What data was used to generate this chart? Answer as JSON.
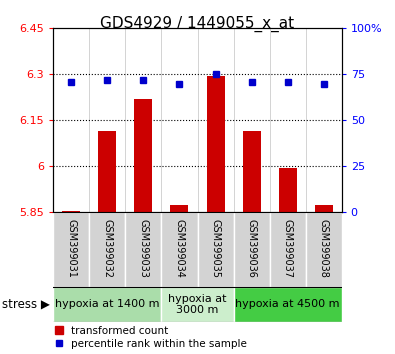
{
  "title": "GDS4929 / 1449055_x_at",
  "samples": [
    "GSM399031",
    "GSM399032",
    "GSM399033",
    "GSM399034",
    "GSM399035",
    "GSM399036",
    "GSM399037",
    "GSM399038"
  ],
  "bar_values": [
    5.855,
    6.115,
    6.22,
    5.875,
    6.295,
    6.115,
    5.995,
    5.875
  ],
  "percentile_values": [
    71,
    72,
    72,
    70,
    75,
    71,
    71,
    70
  ],
  "ylim_left": [
    5.85,
    6.45
  ],
  "ylim_right": [
    0,
    100
  ],
  "yticks_left": [
    5.85,
    6.0,
    6.15,
    6.3,
    6.45
  ],
  "yticks_right": [
    0,
    25,
    50,
    75,
    100
  ],
  "ytick_labels_left": [
    "5.85",
    "6",
    "6.15",
    "6.3",
    "6.45"
  ],
  "ytick_labels_right": [
    "0",
    "25",
    "50",
    "75",
    "100%"
  ],
  "hlines": [
    6.0,
    6.15,
    6.3
  ],
  "bar_color": "#cc0000",
  "square_color": "#0000cc",
  "bar_bottom": 5.85,
  "groups": [
    {
      "label": "hypoxia at 1400 m",
      "samples": [
        0,
        1,
        2
      ],
      "color": "#aaddaa"
    },
    {
      "label": "hypoxia at\n3000 m",
      "samples": [
        3,
        4
      ],
      "color": "#cceecc"
    },
    {
      "label": "hypoxia at 4500 m",
      "samples": [
        5,
        6,
        7
      ],
      "color": "#44cc44"
    }
  ],
  "stress_label": "stress ▶",
  "legend_bar_label": "transformed count",
  "legend_sq_label": "percentile rank within the sample",
  "title_fontsize": 11,
  "tick_fontsize": 8,
  "sample_label_fontsize": 7,
  "group_label_fontsize": 8,
  "legend_fontsize": 7.5
}
